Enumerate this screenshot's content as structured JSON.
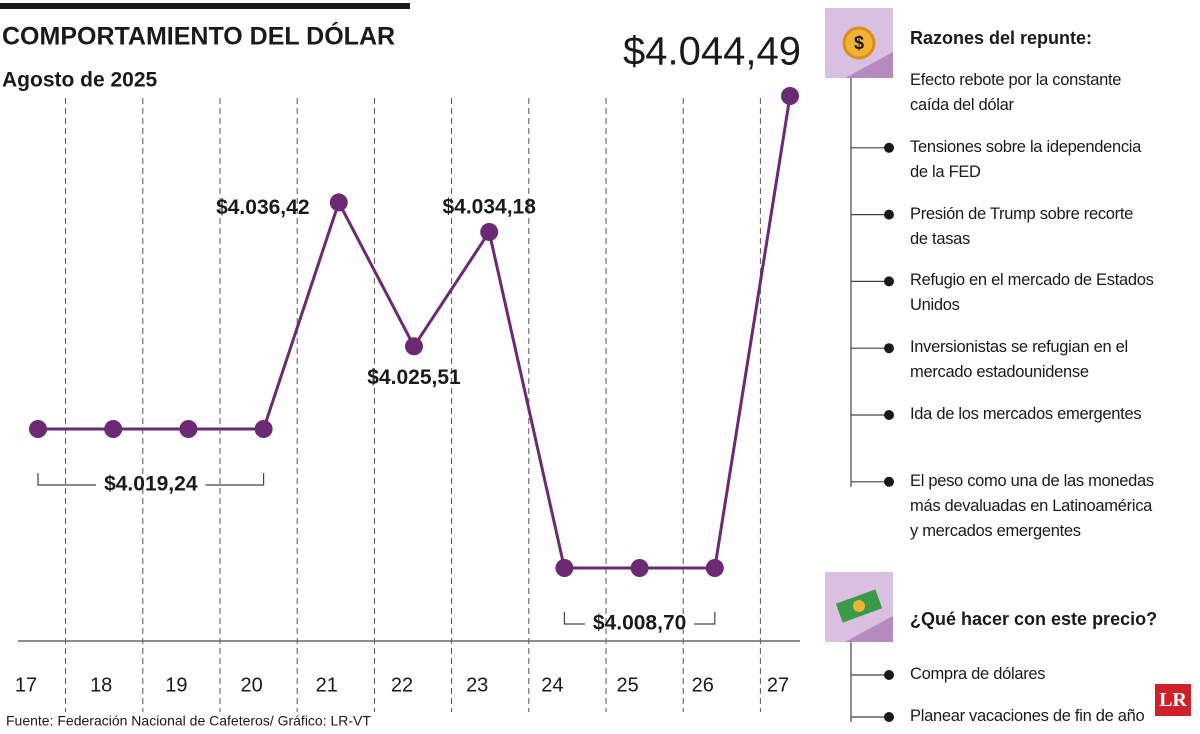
{
  "chart_data": {
    "type": "line",
    "title": "COMPORTAMIENTO DEL DÓLAR",
    "subtitle": "Agosto de 2025",
    "categories": [
      "17",
      "18",
      "19",
      "20",
      "21",
      "22",
      "23",
      "24",
      "25",
      "26",
      "27"
    ],
    "values": [
      4019.24,
      4019.24,
      4019.24,
      4019.24,
      4036.42,
      4025.51,
      4034.18,
      4008.7,
      4008.7,
      4008.7,
      4044.49
    ],
    "value_labels": [
      "$4.019,24",
      null,
      null,
      null,
      "$4.036,42",
      "$4.025,51",
      "$4.034,18",
      "$4.008,70",
      null,
      null,
      "$4.044,49"
    ],
    "color": "#6b2a73",
    "source": "Fuente: Federación Nacional de Cafeteros/ Gráfico: LR-VT"
  },
  "sidebar": {
    "sections": [
      {
        "title": "Razones del repunte:",
        "items": [
          "Efecto rebote por la constante caída del dólar",
          "Tensiones sobre la idependencia de la FED",
          "Presión de Trump sobre recorte de tasas",
          "Refugio en el mercado de Estados Unidos",
          "Inversionistas se refugian en el mercado estadounidense",
          "Ida de los mercados emergentes",
          "El peso como una de las monedas más devaluadas en Latinoamérica y mercados emergentes"
        ]
      },
      {
        "title": "¿Qué hacer con este precio?",
        "items": [
          "Compra de dólares",
          "Planear vacaciones de fin de año"
        ]
      }
    ]
  },
  "logo": "LR"
}
